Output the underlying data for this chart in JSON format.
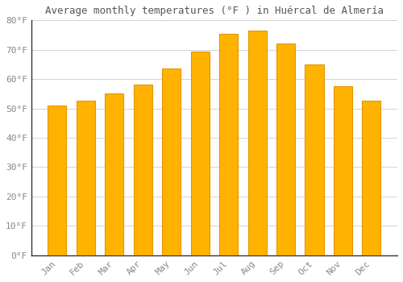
{
  "title": "Average monthly temperatures (°F ) in Huércal de Almería",
  "months": [
    "Jan",
    "Feb",
    "Mar",
    "Apr",
    "May",
    "Jun",
    "Jul",
    "Aug",
    "Sep",
    "Oct",
    "Nov",
    "Dec"
  ],
  "values": [
    51,
    52.5,
    55,
    58,
    63.5,
    69.5,
    75.5,
    76.5,
    72,
    65,
    57.5,
    52.5
  ],
  "bar_color": "#FFB300",
  "bar_edge_color": "#E59400",
  "background_color": "#FFFFFF",
  "grid_color": "#CCCCCC",
  "text_color": "#888888",
  "ylim": [
    0,
    80
  ],
  "yticks": [
    0,
    10,
    20,
    30,
    40,
    50,
    60,
    70,
    80
  ],
  "title_fontsize": 9,
  "tick_fontsize": 8,
  "title_color": "#555555",
  "spine_color": "#333333"
}
